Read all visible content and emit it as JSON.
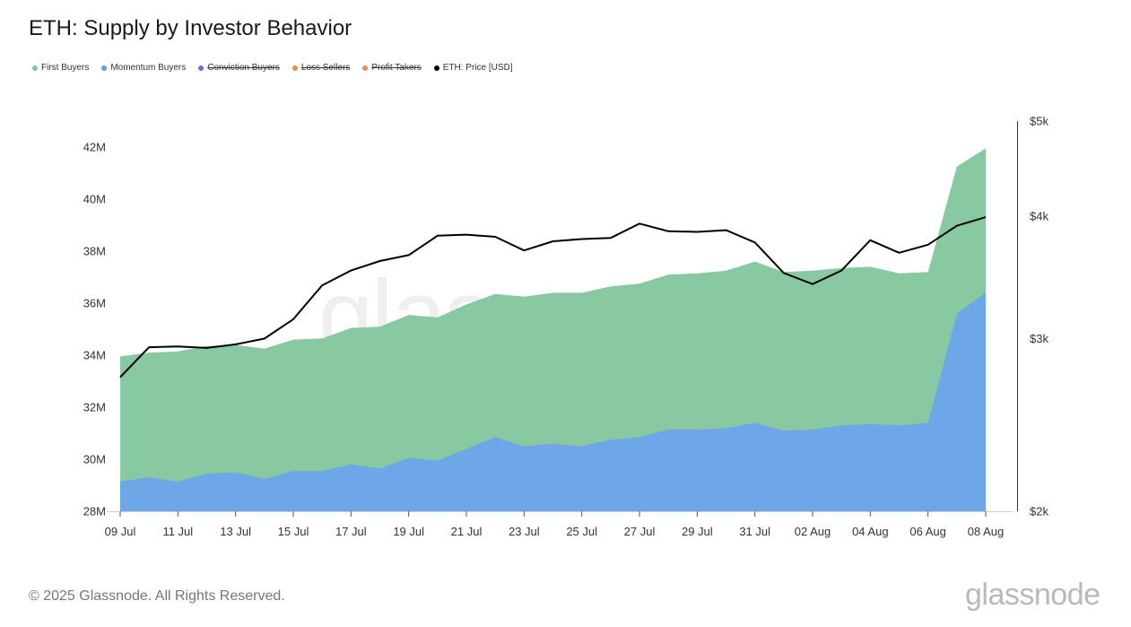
{
  "title": "ETH: Supply by Investor Behavior",
  "legend": [
    {
      "label": "First Buyers",
      "color": "#7fc79a",
      "active": true
    },
    {
      "label": "Momentum Buyers",
      "color": "#5b9de6",
      "active": true
    },
    {
      "label": "Conviction Buyers",
      "color": "#7b61e8",
      "active": false
    },
    {
      "label": "Loss Sellers",
      "color": "#f08a4b",
      "active": false
    },
    {
      "label": "Profit Takers",
      "color": "#f08a4b",
      "active": false
    },
    {
      "label": "ETH: Price [USD]",
      "color": "#000000",
      "active": true
    }
  ],
  "footer": "© 2025 Glassnode. All Rights Reserved.",
  "brand": "glassnode",
  "watermark": "glassnode",
  "chart_data": {
    "type": "area",
    "x": [
      "09 Jul",
      "10 Jul",
      "11 Jul",
      "12 Jul",
      "13 Jul",
      "14 Jul",
      "15 Jul",
      "16 Jul",
      "17 Jul",
      "18 Jul",
      "19 Jul",
      "20 Jul",
      "21 Jul",
      "22 Jul",
      "23 Jul",
      "24 Jul",
      "25 Jul",
      "26 Jul",
      "27 Jul",
      "28 Jul",
      "29 Jul",
      "30 Jul",
      "31 Jul",
      "01 Aug",
      "02 Aug",
      "03 Aug",
      "04 Aug",
      "05 Aug",
      "06 Aug",
      "07 Aug",
      "08 Aug"
    ],
    "x_tick_labels": [
      "09 Jul",
      "11 Jul",
      "13 Jul",
      "15 Jul",
      "17 Jul",
      "19 Jul",
      "21 Jul",
      "23 Jul",
      "25 Jul",
      "27 Jul",
      "29 Jul",
      "31 Jul",
      "02 Aug",
      "04 Aug",
      "06 Aug",
      "08 Aug"
    ],
    "y_left_ticks": [
      "28M",
      "30M",
      "32M",
      "34M",
      "36M",
      "38M",
      "40M",
      "42M"
    ],
    "y_left_range": [
      28,
      43
    ],
    "y_right_ticks": [
      "$2k",
      "$3k",
      "$4k",
      "$5k"
    ],
    "y_right_range": [
      2000,
      5000
    ],
    "y_right_scale": "log",
    "series": [
      {
        "name": "Momentum Buyers",
        "type": "area",
        "color": "#6ea7e8",
        "unit": "M",
        "values": [
          29.15,
          29.3,
          29.15,
          29.45,
          29.5,
          29.25,
          29.55,
          29.55,
          29.8,
          29.65,
          30.05,
          29.95,
          30.4,
          30.85,
          30.5,
          30.6,
          30.5,
          30.75,
          30.85,
          31.15,
          31.15,
          31.2,
          31.4,
          31.1,
          31.15,
          31.3,
          31.35,
          31.3,
          31.4,
          35.6,
          36.4
        ]
      },
      {
        "name": "First Buyers",
        "type": "area",
        "color": "#88c9a1",
        "unit": "M",
        "values": [
          33.95,
          34.1,
          34.15,
          34.35,
          34.4,
          34.25,
          34.6,
          34.65,
          35.05,
          35.1,
          35.55,
          35.45,
          35.95,
          36.35,
          36.25,
          36.4,
          36.4,
          36.65,
          36.75,
          37.1,
          37.15,
          37.25,
          37.6,
          37.2,
          37.25,
          37.35,
          37.4,
          37.15,
          37.2,
          41.25,
          41.95
        ]
      },
      {
        "name": "ETH: Price [USD]",
        "type": "line",
        "color": "#000000",
        "axis": "right",
        "values": [
          2740,
          2940,
          2945,
          2935,
          2960,
          3000,
          3140,
          3400,
          3520,
          3600,
          3650,
          3820,
          3830,
          3810,
          3690,
          3770,
          3790,
          3800,
          3930,
          3860,
          3855,
          3870,
          3760,
          3500,
          3410,
          3520,
          3780,
          3670,
          3740,
          3910,
          3990
        ]
      }
    ],
    "legend_position": "top-left",
    "grid": false
  }
}
